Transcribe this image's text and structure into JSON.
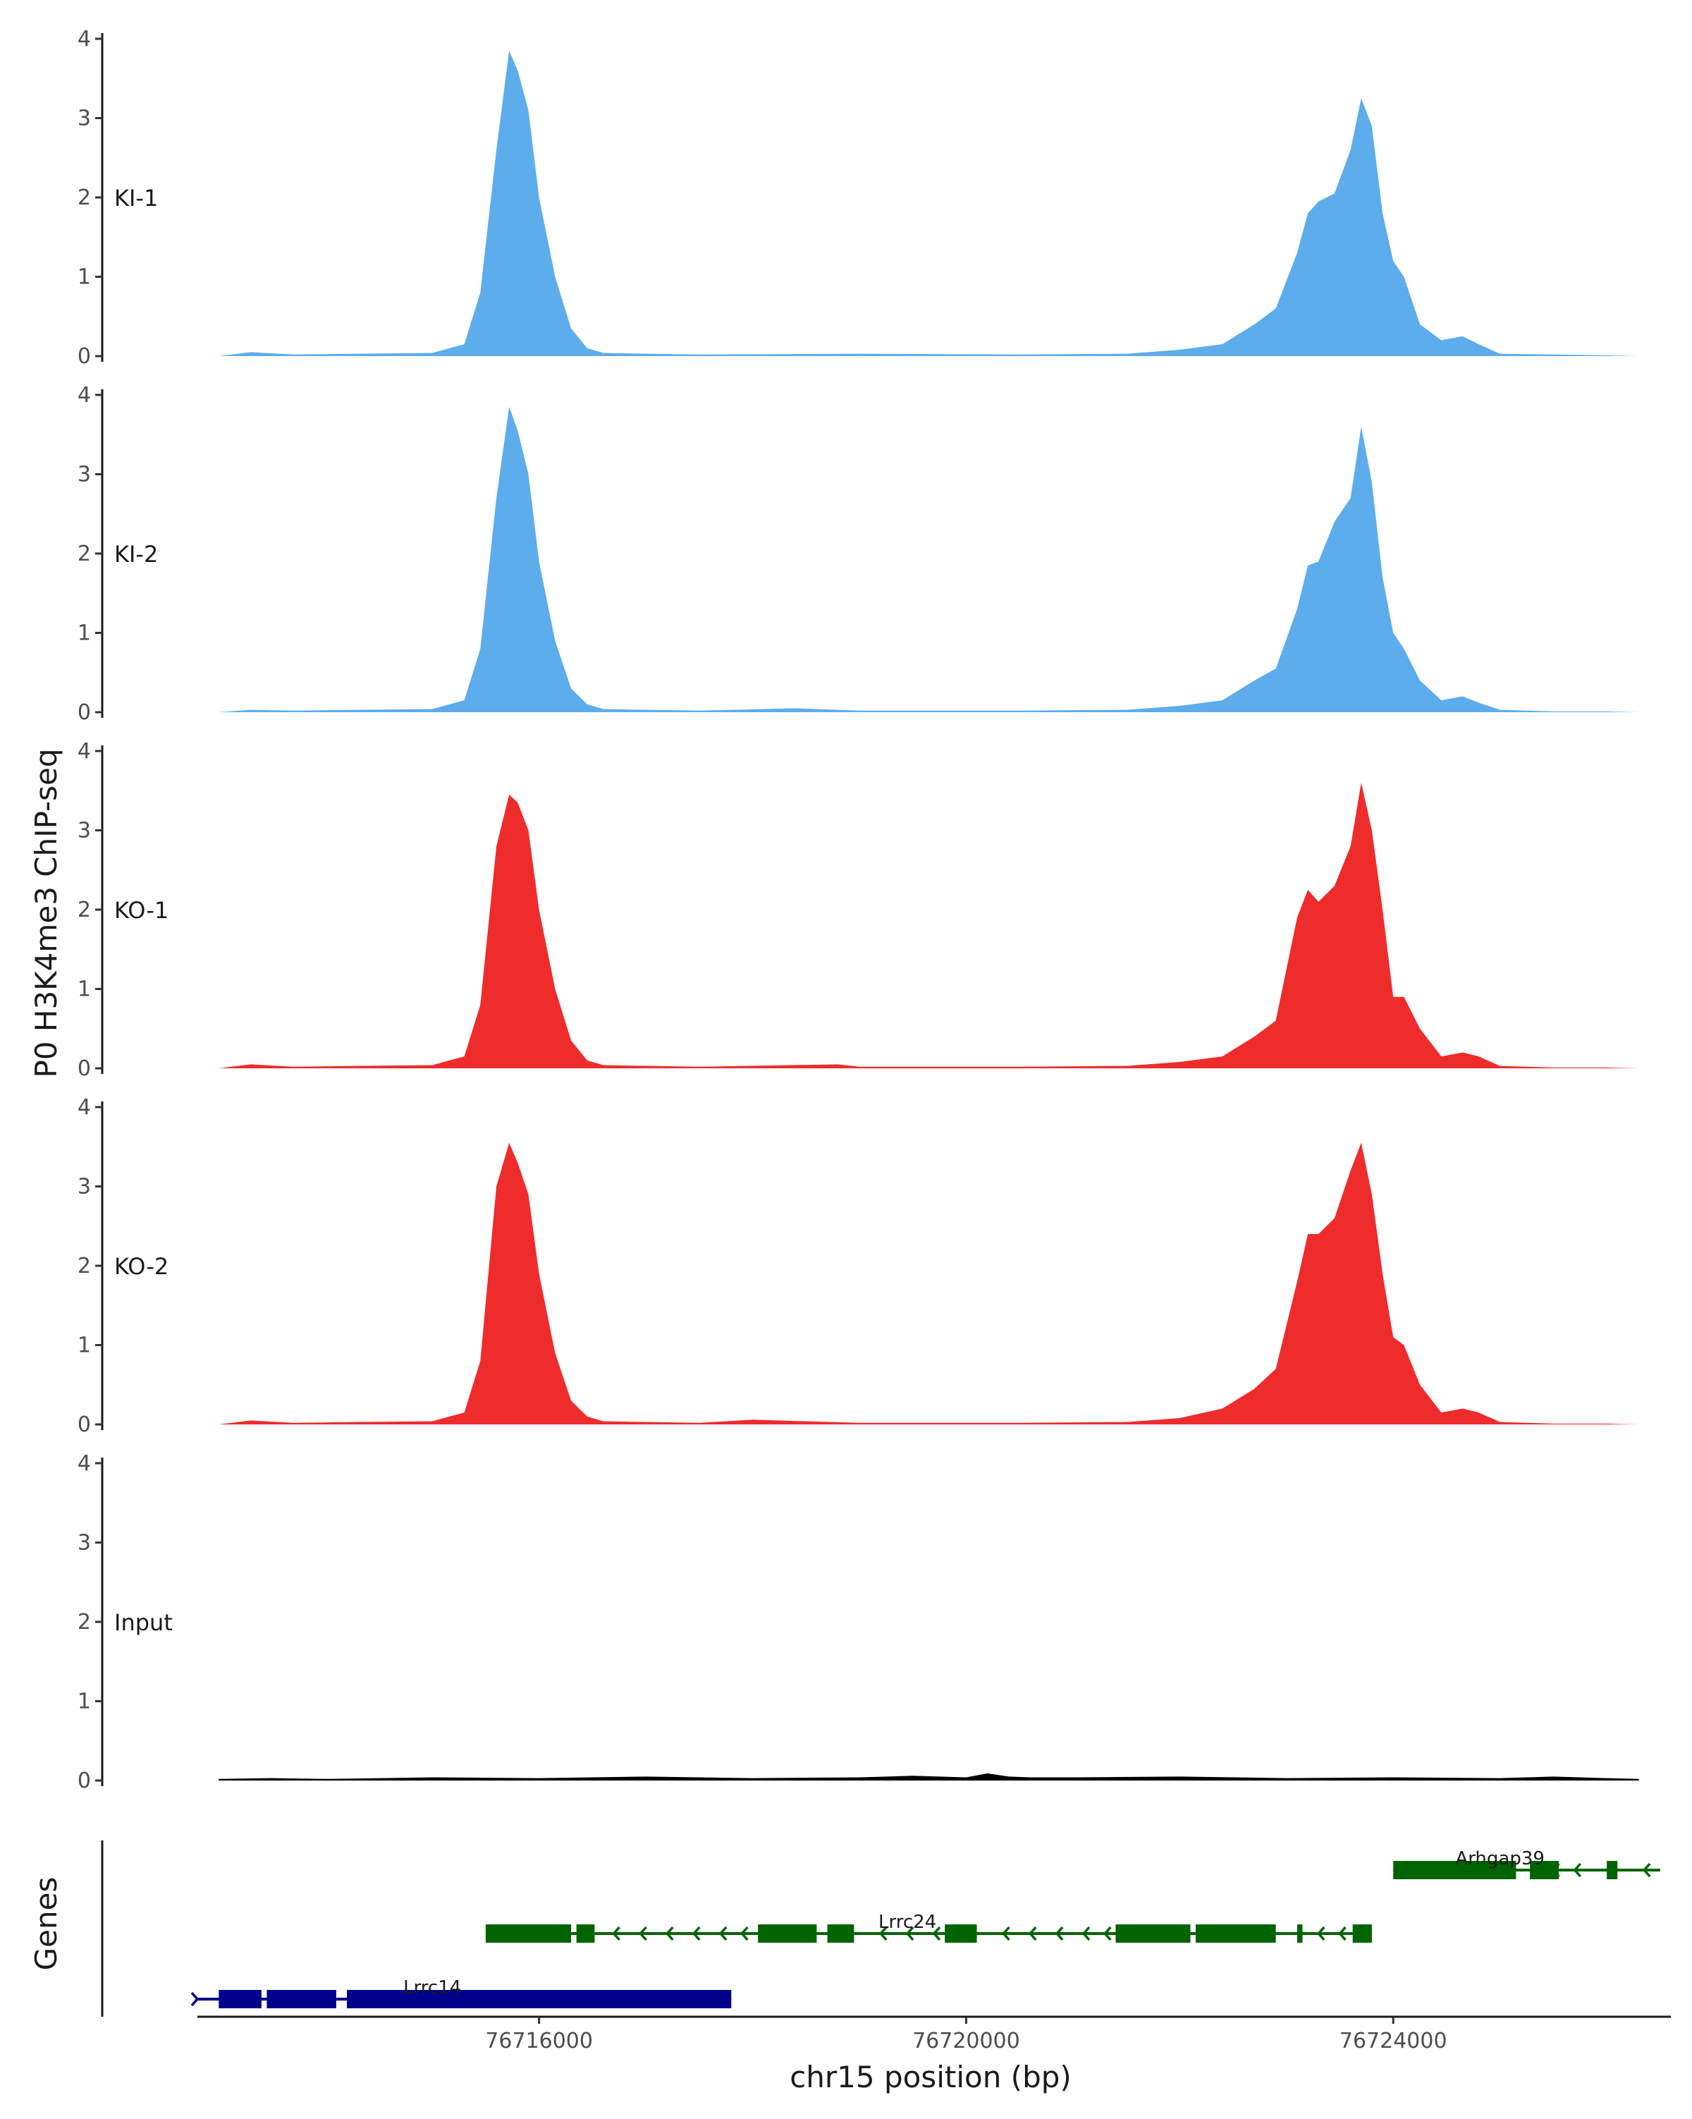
{
  "chart_data": {
    "type": "area",
    "ylabel": "P0 H3K4me3 ChIP-seq",
    "xlabel": "chr15 position (bp)",
    "genes_label": "Genes",
    "xlim": [
      76712800,
      76726600
    ],
    "ylim": [
      0,
      4
    ],
    "x_ticks": [
      76716000,
      76720000,
      76724000
    ],
    "x_tick_labels": [
      "76716000",
      "76720000",
      "76724000"
    ],
    "y_ticks": [
      0,
      1,
      2,
      3,
      4
    ],
    "y_tick_labels": [
      "0",
      "1",
      "2",
      "3",
      "4"
    ],
    "colors": {
      "KI": "#5DADEC",
      "KO": "#EE2C2C",
      "Input": "#000000",
      "gene_plus": "#006400",
      "gene_minus": "#00008B"
    },
    "tracks": [
      {
        "name": "KI-1",
        "color": "#5DADEC",
        "x": [
          76713000,
          76713300,
          76713700,
          76714300,
          76715000,
          76715300,
          76715450,
          76715600,
          76715720,
          76715800,
          76715900,
          76716000,
          76716150,
          76716300,
          76716450,
          76716600,
          76717500,
          76719000,
          76720500,
          76721500,
          76722000,
          76722400,
          76722700,
          76722900,
          76723100,
          76723200,
          76723300,
          76723450,
          76723600,
          76723700,
          76723800,
          76723900,
          76724000,
          76724100,
          76724250,
          76724450,
          76724650,
          76724800,
          76725000,
          76725500,
          76726000,
          76726300
        ],
        "y": [
          0.0,
          0.05,
          0.02,
          0.03,
          0.04,
          0.15,
          0.8,
          2.6,
          3.85,
          3.6,
          3.1,
          2.0,
          1.0,
          0.35,
          0.1,
          0.04,
          0.02,
          0.03,
          0.02,
          0.03,
          0.08,
          0.15,
          0.4,
          0.6,
          1.3,
          1.8,
          1.95,
          2.05,
          2.6,
          3.25,
          2.9,
          1.8,
          1.2,
          1.0,
          0.4,
          0.2,
          0.25,
          0.15,
          0.03,
          0.02,
          0.01,
          0.0
        ]
      },
      {
        "name": "KI-2",
        "color": "#5DADEC",
        "x": [
          76713000,
          76713300,
          76713700,
          76714300,
          76715000,
          76715300,
          76715450,
          76715600,
          76715720,
          76715800,
          76715900,
          76716000,
          76716150,
          76716300,
          76716450,
          76716600,
          76717500,
          76718400,
          76719000,
          76720500,
          76721500,
          76722000,
          76722400,
          76722700,
          76722900,
          76723100,
          76723200,
          76723300,
          76723450,
          76723600,
          76723700,
          76723800,
          76723900,
          76724000,
          76724100,
          76724250,
          76724450,
          76724650,
          76724800,
          76725000,
          76725500,
          76726000,
          76726300
        ],
        "y": [
          0.0,
          0.03,
          0.02,
          0.03,
          0.04,
          0.15,
          0.8,
          2.7,
          3.85,
          3.55,
          3.0,
          1.9,
          0.9,
          0.3,
          0.1,
          0.04,
          0.02,
          0.05,
          0.02,
          0.02,
          0.03,
          0.08,
          0.15,
          0.4,
          0.55,
          1.3,
          1.85,
          1.9,
          2.4,
          2.7,
          3.6,
          2.9,
          1.7,
          1.0,
          0.8,
          0.4,
          0.15,
          0.2,
          0.12,
          0.03,
          0.01,
          0.01,
          0.0
        ]
      },
      {
        "name": "KO-1",
        "color": "#EE2C2C",
        "x": [
          76713000,
          76713300,
          76713700,
          76714300,
          76715000,
          76715300,
          76715450,
          76715600,
          76715720,
          76715800,
          76715900,
          76716000,
          76716150,
          76716300,
          76716450,
          76716600,
          76717500,
          76718800,
          76719000,
          76720500,
          76721500,
          76722000,
          76722400,
          76722700,
          76722900,
          76723100,
          76723200,
          76723300,
          76723450,
          76723600,
          76723700,
          76723800,
          76723900,
          76724000,
          76724100,
          76724250,
          76724450,
          76724650,
          76724800,
          76725000,
          76725500,
          76726000,
          76726300
        ],
        "y": [
          0.0,
          0.05,
          0.02,
          0.03,
          0.04,
          0.15,
          0.8,
          2.8,
          3.45,
          3.35,
          3.0,
          2.0,
          1.0,
          0.35,
          0.1,
          0.04,
          0.02,
          0.05,
          0.02,
          0.02,
          0.03,
          0.08,
          0.15,
          0.4,
          0.6,
          1.9,
          2.25,
          2.1,
          2.3,
          2.8,
          3.6,
          3.0,
          2.0,
          0.9,
          0.9,
          0.5,
          0.15,
          0.2,
          0.15,
          0.03,
          0.01,
          0.01,
          0.0
        ]
      },
      {
        "name": "KO-2",
        "color": "#EE2C2C",
        "x": [
          76713000,
          76713300,
          76713700,
          76714300,
          76715000,
          76715300,
          76715450,
          76715600,
          76715720,
          76715800,
          76715900,
          76716000,
          76716150,
          76716300,
          76716450,
          76716600,
          76717500,
          76718000,
          76719000,
          76720500,
          76721500,
          76722000,
          76722400,
          76722700,
          76722900,
          76723100,
          76723200,
          76723300,
          76723450,
          76723600,
          76723700,
          76723800,
          76723900,
          76724000,
          76724100,
          76724250,
          76724450,
          76724650,
          76724800,
          76725000,
          76725500,
          76726000,
          76726300
        ],
        "y": [
          0.0,
          0.05,
          0.02,
          0.03,
          0.04,
          0.15,
          0.8,
          3.0,
          3.55,
          3.3,
          2.9,
          1.9,
          0.9,
          0.3,
          0.1,
          0.04,
          0.02,
          0.06,
          0.02,
          0.02,
          0.03,
          0.08,
          0.2,
          0.45,
          0.7,
          1.8,
          2.4,
          2.4,
          2.6,
          3.2,
          3.55,
          2.9,
          1.9,
          1.1,
          1.0,
          0.5,
          0.15,
          0.2,
          0.15,
          0.03,
          0.01,
          0.01,
          0.0
        ]
      },
      {
        "name": "Input",
        "color": "#000000",
        "x": [
          76713000,
          76713500,
          76714000,
          76715000,
          76716000,
          76717000,
          76718000,
          76719000,
          76719500,
          76720000,
          76720200,
          76720400,
          76720600,
          76721000,
          76722000,
          76723000,
          76724000,
          76725000,
          76725500,
          76726000,
          76726300
        ],
        "y": [
          0.02,
          0.03,
          0.02,
          0.04,
          0.03,
          0.05,
          0.03,
          0.04,
          0.06,
          0.04,
          0.09,
          0.05,
          0.04,
          0.04,
          0.05,
          0.03,
          0.04,
          0.03,
          0.05,
          0.03,
          0.02
        ]
      }
    ],
    "genes": [
      {
        "name": "Arhgap39",
        "color": "#006400",
        "strand": "-",
        "start": 76724000,
        "end": 76726500,
        "exons": [
          [
            76724000,
            76725150
          ],
          [
            76725280,
            76725550
          ],
          [
            76726000,
            76726100
          ]
        ],
        "arrows": [
          76725500,
          76725700,
          76726350
        ]
      },
      {
        "name": "Lrrc24",
        "color": "#006400",
        "strand": "-",
        "start": 76715500,
        "end": 76723800,
        "exons": [
          [
            76715500,
            76716300
          ],
          [
            76716350,
            76716520
          ],
          [
            76718050,
            76718600
          ],
          [
            76718700,
            76718950
          ],
          [
            76719800,
            76720100
          ],
          [
            76721400,
            76722100
          ],
          [
            76722150,
            76722900
          ],
          [
            76723100,
            76723150
          ],
          [
            76723620,
            76723800
          ]
        ],
        "arrows": [
          76716700,
          76716950,
          76717200,
          76717450,
          76717700,
          76717900,
          76719200,
          76719450,
          76719700,
          76720350,
          76720600,
          76720850,
          76721100,
          76721300,
          76723300,
          76723500
        ]
      },
      {
        "name": "Lrrc14",
        "color": "#00008B",
        "strand": "+",
        "start": 76712800,
        "end": 76717800,
        "exons": [
          [
            76713000,
            76713400
          ],
          [
            76713450,
            76714100
          ],
          [
            76714200,
            76717800
          ]
        ],
        "arrows": [
          76712800
        ]
      }
    ]
  }
}
